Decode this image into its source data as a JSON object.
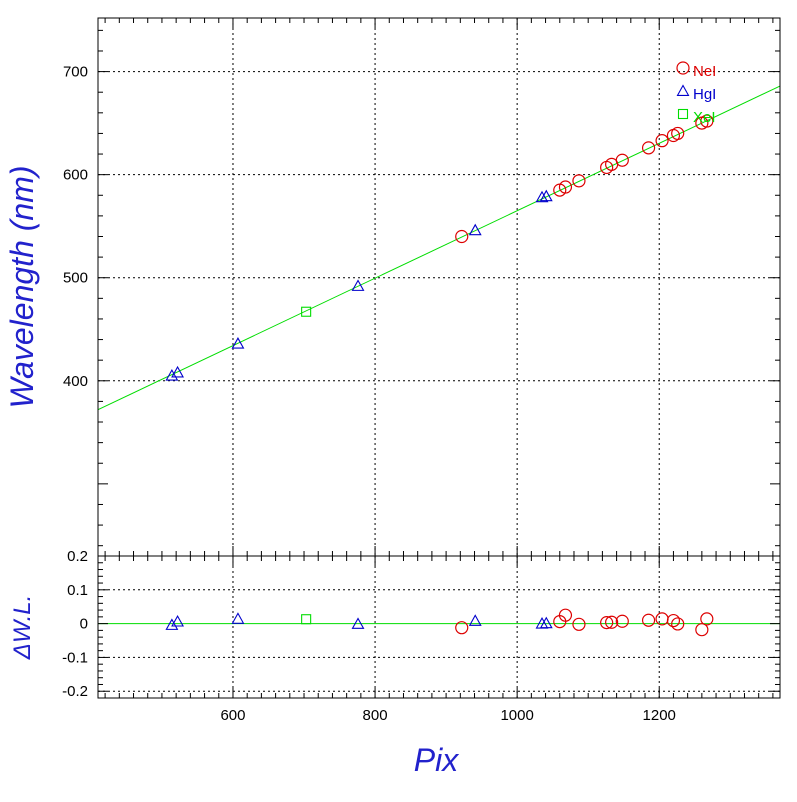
{
  "chart_data": [
    {
      "type": "scatter",
      "panel": "main",
      "xlabel": "Pix",
      "ylabel": "Wavelength (nm)",
      "xlim": [
        410,
        1370
      ],
      "ylim": [
        230,
        752
      ],
      "x_ticks": [
        600,
        800,
        1000,
        1200
      ],
      "x_tick_labels": [
        "600",
        "800",
        "1000",
        "1200"
      ],
      "y_ticks": [
        400,
        500,
        600,
        700
      ],
      "y_tick_labels": [
        "400",
        "500",
        "600",
        "700"
      ],
      "grid": true,
      "legend_position": "top-right",
      "fit_line": {
        "color": "#00dd00",
        "points": [
          [
            410,
            372
          ],
          [
            1370,
            686
          ]
        ]
      },
      "series": [
        {
          "name": "NeI",
          "marker": "circle",
          "color": "#dd0000",
          "points": [
            [
              922,
              540
            ],
            [
              1060,
              585
            ],
            [
              1068,
              588
            ],
            [
              1087,
              594
            ],
            [
              1126,
              607
            ],
            [
              1133,
              610
            ],
            [
              1148,
              614
            ],
            [
              1185,
              626
            ],
            [
              1204,
              633
            ],
            [
              1220,
              638
            ],
            [
              1226,
              640
            ],
            [
              1260,
              650
            ],
            [
              1267,
              652
            ]
          ]
        },
        {
          "name": "HgI",
          "marker": "triangle",
          "color": "#0000cc",
          "points": [
            [
              514,
              405
            ],
            [
              522,
              408
            ],
            [
              607,
              436
            ],
            [
              776,
              492
            ],
            [
              941,
              546
            ],
            [
              1035,
              578
            ],
            [
              1041,
              579
            ]
          ]
        },
        {
          "name": "XeI",
          "marker": "square",
          "color": "#00dd00",
          "points": [
            [
              703,
              467
            ]
          ]
        }
      ]
    },
    {
      "type": "scatter",
      "panel": "residuals",
      "xlabel": "Pix",
      "ylabel": "ΔW.L.",
      "xlim": [
        410,
        1370
      ],
      "ylim": [
        -0.22,
        0.2
      ],
      "y_ticks": [
        -0.2,
        -0.1,
        0,
        0.1,
        0.2
      ],
      "y_tick_labels": [
        "-0.2",
        "-0.1",
        "0",
        "0.1",
        "0.2"
      ],
      "grid": true,
      "zero_line": {
        "color": "#00dd00",
        "value": 0
      },
      "series": [
        {
          "name": "NeI",
          "marker": "circle",
          "color": "#dd0000",
          "points": [
            [
              922,
              -0.012
            ],
            [
              1060,
              0.006
            ],
            [
              1068,
              0.025
            ],
            [
              1087,
              -0.002
            ],
            [
              1126,
              0.003
            ],
            [
              1133,
              0.004
            ],
            [
              1148,
              0.007
            ],
            [
              1185,
              0.01
            ],
            [
              1204,
              0.014
            ],
            [
              1220,
              0.009
            ],
            [
              1226,
              -0.001
            ],
            [
              1260,
              -0.018
            ],
            [
              1267,
              0.014
            ]
          ]
        },
        {
          "name": "HgI",
          "marker": "triangle",
          "color": "#0000cc",
          "points": [
            [
              514,
              -0.004
            ],
            [
              522,
              0.006
            ],
            [
              607,
              0.014
            ],
            [
              776,
              -0.001
            ],
            [
              941,
              0.008
            ],
            [
              1035,
              0
            ],
            [
              1041,
              0.001
            ]
          ]
        },
        {
          "name": "XeI",
          "marker": "square",
          "color": "#00dd00",
          "points": [
            [
              703,
              0.013
            ]
          ]
        }
      ]
    }
  ],
  "colors": {
    "axis_label": "#2222cc",
    "tick_label": "#000000",
    "frame": "#000000",
    "grid": "#000000"
  }
}
